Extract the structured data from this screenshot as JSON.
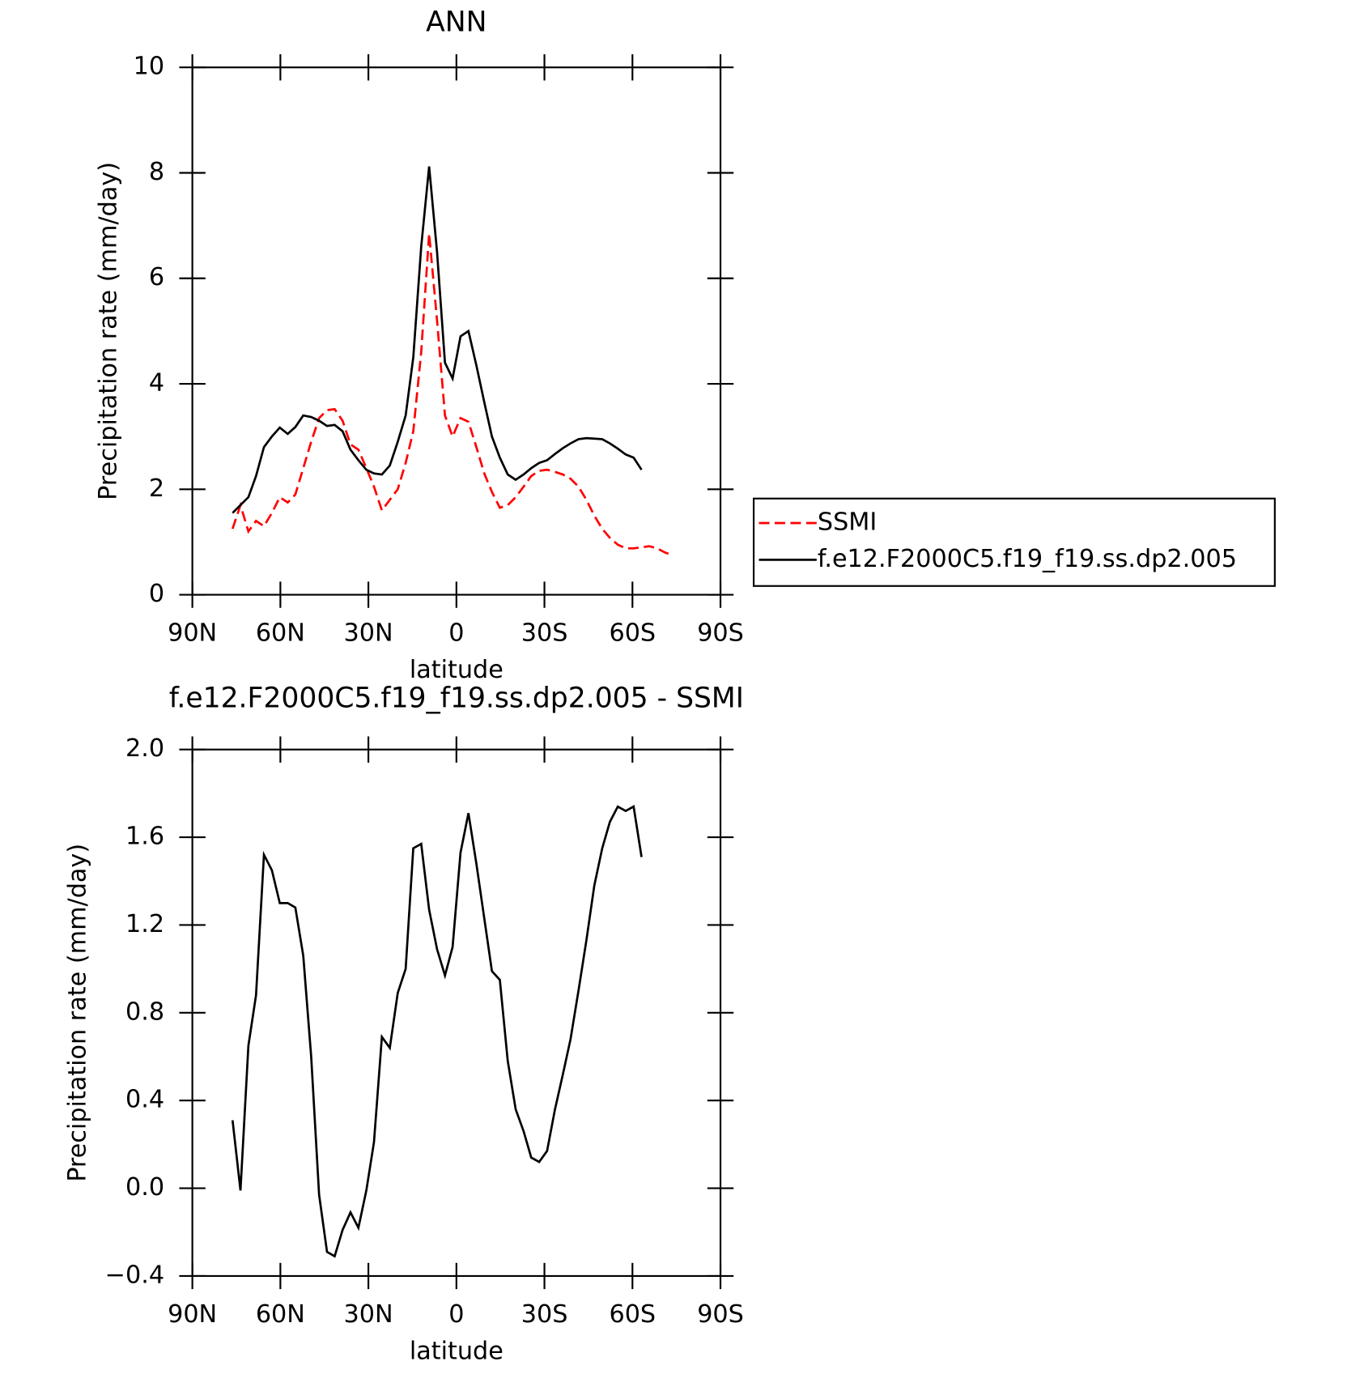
{
  "chart_data": [
    {
      "type": "line",
      "title": "ANN",
      "xlabel": "latitude",
      "ylabel": "Precipitation rate (mm/day)",
      "x": [
        76.3,
        73.6,
        70.9,
        68.3,
        65.6,
        62.9,
        60.2,
        57.5,
        54.9,
        52.2,
        49.5,
        46.8,
        44.1,
        41.5,
        38.8,
        36.1,
        33.4,
        30.7,
        28.1,
        25.4,
        22.7,
        20.0,
        17.3,
        14.7,
        12.0,
        9.3,
        6.6,
        3.9,
        1.3,
        -1.4,
        -4.1,
        -6.8,
        -9.5,
        -12.1,
        -14.8,
        -17.5,
        -20.2,
        -22.9,
        -25.5,
        -28.2,
        -30.9,
        -33.6,
        -36.3,
        -38.9,
        -41.6,
        -44.3,
        -47.0,
        -49.7,
        -52.3,
        -55.0,
        -57.7,
        -60.4,
        -63.1,
        -65.7,
        -68.4,
        -71.1,
        -73.8
      ],
      "series": [
        {
          "name": "SSMI",
          "color": "#ff0000",
          "dashed": true,
          "values": [
            1.25,
            1.7,
            1.2,
            1.4,
            1.3,
            1.55,
            1.85,
            1.75,
            1.9,
            2.4,
            2.9,
            3.35,
            3.5,
            3.52,
            3.3,
            2.85,
            2.75,
            2.4,
            2.05,
            1.6,
            1.8,
            2.0,
            2.5,
            3.1,
            4.6,
            6.85,
            5.2,
            3.4,
            3.0,
            3.35,
            3.28,
            2.8,
            2.3,
            1.95,
            1.65,
            1.7,
            1.85,
            2.05,
            2.25,
            2.35,
            2.37,
            2.33,
            2.28,
            2.2,
            2.05,
            1.8,
            1.5,
            1.25,
            1.08,
            0.95,
            0.88,
            0.88,
            0.9,
            0.92,
            0.88,
            0.8,
            0.75
          ]
        },
        {
          "name": "f.e12.F2000C5.f19_f19.ss.dp2.005",
          "color": "#000000",
          "dashed": false,
          "values": [
            1.55,
            1.7,
            1.85,
            2.25,
            2.8,
            3.0,
            3.17,
            3.05,
            3.18,
            3.4,
            3.37,
            3.3,
            3.2,
            3.22,
            3.1,
            2.75,
            2.55,
            2.37,
            2.3,
            2.28,
            2.45,
            2.9,
            3.4,
            4.5,
            6.6,
            8.12,
            6.5,
            4.4,
            4.1,
            4.9,
            5.0,
            4.35,
            3.65,
            3.0,
            2.6,
            2.28,
            2.18,
            2.28,
            2.4,
            2.5,
            2.55,
            2.67,
            2.78,
            2.87,
            2.95,
            2.97,
            2.96,
            2.95,
            2.87,
            2.77,
            2.66,
            2.6,
            2.37,
            null,
            null,
            null,
            null
          ]
        }
      ],
      "xlim": [
        90,
        -90
      ],
      "xticks": [
        {
          "value": 90,
          "label": "90N"
        },
        {
          "value": 60,
          "label": "60N"
        },
        {
          "value": 30,
          "label": "30N"
        },
        0,
        {
          "value": -30,
          "label": "30S"
        },
        {
          "value": -60,
          "label": "60S"
        },
        {
          "value": -90,
          "label": "90S"
        }
      ],
      "ylim": [
        0,
        10
      ],
      "yticks": [
        0,
        2,
        4,
        6,
        8,
        10
      ],
      "legend": "outside-right"
    },
    {
      "type": "line",
      "title": "f.e12.F2000C5.f19_f19.ss.dp2.005 - SSMI",
      "xlabel": "latitude",
      "ylabel": "Precipitation rate (mm/day)",
      "x": [
        76.3,
        73.6,
        70.9,
        68.3,
        65.6,
        62.9,
        60.2,
        57.5,
        54.9,
        52.2,
        49.5,
        46.8,
        44.1,
        41.5,
        38.8,
        36.1,
        33.4,
        30.7,
        28.1,
        25.4,
        22.7,
        20.0,
        17.3,
        14.7,
        12.0,
        9.3,
        6.6,
        3.9,
        1.3,
        -1.4,
        -4.1,
        -6.8,
        -9.5,
        -12.1,
        -14.8,
        -17.5,
        -20.2,
        -22.9,
        -25.5,
        -28.2,
        -30.9,
        -33.6,
        -36.3,
        -38.9,
        -41.6,
        -44.3,
        -47.0,
        -49.7,
        -52.3,
        -55.0,
        -57.7,
        -60.4,
        -63.1,
        -65.7,
        -68.4,
        -71.1,
        -73.8
      ],
      "series": [
        {
          "color": "#000000",
          "dashed": false,
          "values": [
            0.31,
            -0.01,
            0.65,
            0.88,
            1.52,
            1.45,
            1.3,
            1.3,
            1.28,
            1.06,
            0.6,
            -0.03,
            -0.29,
            -0.31,
            -0.19,
            -0.11,
            -0.18,
            -0.01,
            0.21,
            0.69,
            0.64,
            0.89,
            1.0,
            1.55,
            1.57,
            1.27,
            1.09,
            0.97,
            1.1,
            1.53,
            1.71,
            1.48,
            1.23,
            0.99,
            0.95,
            0.58,
            0.36,
            0.26,
            0.14,
            0.12,
            0.17,
            0.36,
            0.52,
            0.68,
            0.9,
            1.13,
            1.38,
            1.55,
            1.67,
            1.74,
            1.72,
            1.74,
            1.51,
            null,
            null,
            null,
            null
          ]
        }
      ],
      "xlim": [
        90,
        -90
      ],
      "xticks": [
        {
          "value": 90,
          "label": "90N"
        },
        {
          "value": 60,
          "label": "60N"
        },
        {
          "value": 30,
          "label": "30N"
        },
        0,
        {
          "value": -30,
          "label": "30S"
        },
        {
          "value": -60,
          "label": "60S"
        },
        {
          "value": -90,
          "label": "90S"
        }
      ],
      "ylim": [
        -0.4,
        2.0
      ],
      "yticks": [
        {
          "value": -0.4,
          "label": "−0.4"
        },
        {
          "value": 0,
          "label": "0.0"
        },
        0.4,
        0.8,
        1.2,
        1.6,
        {
          "value": 2.0,
          "label": "2.0"
        }
      ]
    }
  ]
}
